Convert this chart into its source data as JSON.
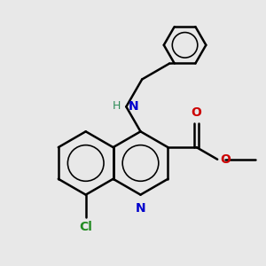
{
  "background_color": "#e8e8e8",
  "line_color": "#000000",
  "bond_width": 1.8,
  "figsize": [
    3.0,
    3.0
  ],
  "dpi": 100,
  "N_blue": "#0000cc",
  "O_red": "#cc0000",
  "Cl_green": "#228B22",
  "NH_teal": "#2e8b57",
  "NH_blue": "#0000cc",
  "xlim": [
    -1.6,
    1.8
  ],
  "ylim": [
    -1.7,
    1.8
  ]
}
